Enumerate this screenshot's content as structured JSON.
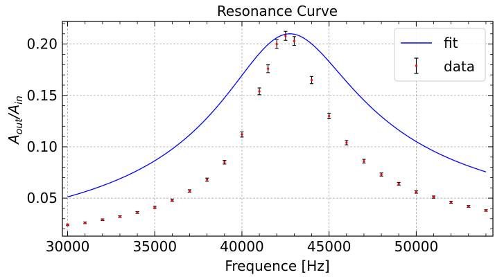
{
  "chart_data": {
    "type": "scatter",
    "title": "Resonance Curve",
    "xlabel": "Frequence [Hz]",
    "ylabel_main": "A",
    "ylabel_out": "out",
    "ylabel_slash": "/A",
    "ylabel_in": "in",
    "xlim": [
      29700,
      54400
    ],
    "ylim": [
      0.013,
      0.222
    ],
    "xticks": [
      30000,
      35000,
      40000,
      45000,
      50000
    ],
    "xtick_labels": [
      "30000",
      "35000",
      "40000",
      "45000",
      "50000"
    ],
    "yticks": [
      0.05,
      0.1,
      0.15,
      0.2
    ],
    "ytick_labels": [
      "0.05",
      "0.10",
      "0.15",
      "0.20"
    ],
    "grid": true,
    "legend_position": "top-right",
    "colors": {
      "fit": "#0000ff",
      "marker": "#ff0000",
      "errorbar": "#000000",
      "grid": "#9e9e9e"
    },
    "series": [
      {
        "name": "fit",
        "kind": "line",
        "model": "lorentzian_resonance",
        "params": {
          "A0": 0.21,
          "f0": 42750,
          "Q": 5.5
        },
        "x_start": 30000,
        "x_end": 54000
      },
      {
        "name": "data",
        "kind": "errorbar",
        "points": [
          {
            "x": 30000,
            "y": 0.024,
            "err": 0.0008
          },
          {
            "x": 31000,
            "y": 0.026,
            "err": 0.0008
          },
          {
            "x": 32000,
            "y": 0.029,
            "err": 0.0008
          },
          {
            "x": 33000,
            "y": 0.032,
            "err": 0.0008
          },
          {
            "x": 34000,
            "y": 0.036,
            "err": 0.0009
          },
          {
            "x": 35000,
            "y": 0.041,
            "err": 0.001
          },
          {
            "x": 36000,
            "y": 0.048,
            "err": 0.0011
          },
          {
            "x": 37000,
            "y": 0.057,
            "err": 0.0012
          },
          {
            "x": 38000,
            "y": 0.068,
            "err": 0.0015
          },
          {
            "x": 39000,
            "y": 0.085,
            "err": 0.0018
          },
          {
            "x": 40000,
            "y": 0.112,
            "err": 0.0025
          },
          {
            "x": 41000,
            "y": 0.154,
            "err": 0.0033
          },
          {
            "x": 41500,
            "y": 0.176,
            "err": 0.0038
          },
          {
            "x": 42000,
            "y": 0.2,
            "err": 0.0042
          },
          {
            "x": 42500,
            "y": 0.208,
            "err": 0.0044
          },
          {
            "x": 43000,
            "y": 0.203,
            "err": 0.0043
          },
          {
            "x": 44000,
            "y": 0.165,
            "err": 0.0035
          },
          {
            "x": 45000,
            "y": 0.13,
            "err": 0.0027
          },
          {
            "x": 46000,
            "y": 0.104,
            "err": 0.0021
          },
          {
            "x": 47000,
            "y": 0.086,
            "err": 0.0018
          },
          {
            "x": 48000,
            "y": 0.073,
            "err": 0.0015
          },
          {
            "x": 49000,
            "y": 0.064,
            "err": 0.0013
          },
          {
            "x": 50000,
            "y": 0.056,
            "err": 0.0012
          },
          {
            "x": 51000,
            "y": 0.051,
            "err": 0.0011
          },
          {
            "x": 52000,
            "y": 0.046,
            "err": 0.001
          },
          {
            "x": 53000,
            "y": 0.042,
            "err": 0.0009
          },
          {
            "x": 54000,
            "y": 0.038,
            "err": 0.0008
          }
        ]
      }
    ]
  }
}
